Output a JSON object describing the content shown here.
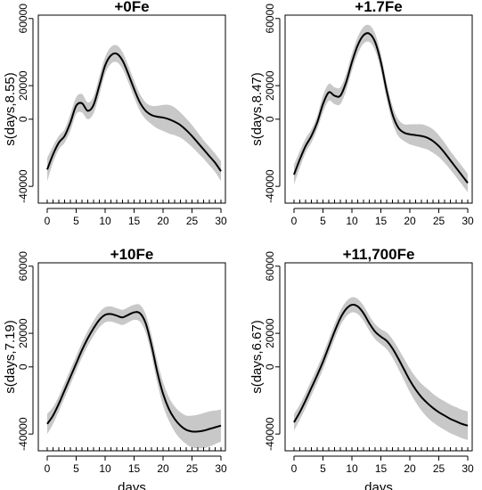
{
  "chart_data": [
    {
      "type": "line",
      "title": "+0Fe",
      "ylabel": "s(days,8.55)",
      "xlabel": "",
      "xlim": [
        0,
        30
      ],
      "ylim": [
        -50000,
        62000
      ],
      "xticks": [
        0,
        5,
        10,
        15,
        20,
        25,
        30
      ],
      "yticks": [
        -40000,
        0,
        20000,
        60000
      ],
      "ytick_labels": [
        "-40000",
        "0",
        "20000",
        "60000"
      ],
      "rug": [
        0,
        1,
        2,
        3,
        4,
        5,
        6,
        7,
        8,
        9,
        10,
        11,
        12,
        13,
        14,
        15,
        16,
        17,
        18,
        19,
        20,
        21,
        22,
        23,
        24,
        25,
        26,
        27,
        28,
        29,
        30
      ],
      "series": [
        {
          "x": [
            0,
            1,
            2,
            3,
            4,
            5,
            6,
            7,
            8,
            9,
            10,
            11,
            12,
            13,
            14,
            15,
            16,
            17,
            18,
            19,
            20,
            21,
            22,
            23,
            24,
            25,
            26,
            27,
            28,
            29,
            30
          ],
          "y": [
            -30000,
            -21000,
            -14000,
            -10000,
            -2000,
            8000,
            9500,
            5000,
            8500,
            20000,
            32000,
            38000,
            39000,
            35000,
            27000,
            18000,
            10000,
            5000,
            2500,
            1500,
            1000,
            0,
            -1500,
            -3500,
            -6500,
            -10000,
            -14000,
            -18000,
            -22000,
            -26000,
            -31000
          ],
          "lower": [
            -37000,
            -26000,
            -18000,
            -14000,
            -7000,
            3000,
            4000,
            0,
            3500,
            14500,
            27000,
            33000,
            34000,
            30000,
            22000,
            13000,
            5000,
            0,
            -3000,
            -5500,
            -7000,
            -8500,
            -9500,
            -11000,
            -13500,
            -16500,
            -20000,
            -23500,
            -27500,
            -31500,
            -37000
          ],
          "upper": [
            -23000,
            -16000,
            -10000,
            -6000,
            3000,
            13000,
            15000,
            10000,
            13500,
            25500,
            37000,
            43000,
            44000,
            40000,
            32000,
            23000,
            15000,
            10000,
            8000,
            8000,
            8500,
            8500,
            7000,
            4000,
            500,
            -3500,
            -8000,
            -12500,
            -16500,
            -20500,
            -25000
          ]
        }
      ]
    },
    {
      "type": "line",
      "title": "+1.7Fe",
      "ylabel": "s(days,8.47)",
      "xlabel": "",
      "xlim": [
        0,
        30
      ],
      "ylim": [
        -50000,
        62000
      ],
      "xticks": [
        0,
        5,
        10,
        15,
        20,
        25,
        30
      ],
      "yticks": [
        -40000,
        0,
        20000,
        60000
      ],
      "ytick_labels": [
        "-40000",
        "0",
        "20000",
        "60000"
      ],
      "rug": [
        0,
        1,
        2,
        3,
        4,
        5,
        6,
        7,
        8,
        9,
        10,
        11,
        12,
        13,
        14,
        15,
        16,
        17,
        18,
        19,
        20,
        21,
        22,
        23,
        24,
        25,
        26,
        27,
        28,
        29,
        30
      ],
      "series": [
        {
          "x": [
            0,
            1,
            2,
            3,
            4,
            5,
            6,
            7,
            8,
            9,
            10,
            11,
            12,
            13,
            14,
            15,
            16,
            17,
            18,
            19,
            20,
            21,
            22,
            23,
            24,
            25,
            26,
            27,
            28,
            29,
            30
          ],
          "y": [
            -33000,
            -24000,
            -16000,
            -10000,
            -2000,
            9000,
            16000,
            14000,
            14000,
            22000,
            34000,
            44000,
            50000,
            51000,
            46000,
            34000,
            17000,
            3000,
            -5000,
            -8000,
            -9000,
            -9500,
            -10000,
            -11000,
            -13000,
            -16000,
            -20000,
            -24500,
            -29000,
            -33500,
            -38000
          ],
          "lower": [
            -39000,
            -29000,
            -20000,
            -14000,
            -6000,
            4000,
            11000,
            9000,
            9000,
            17000,
            29000,
            39000,
            45000,
            46000,
            41000,
            29000,
            12000,
            -2000,
            -10000,
            -13000,
            -15000,
            -16000,
            -17000,
            -18000,
            -20000,
            -22500,
            -26000,
            -30000,
            -34500,
            -39000,
            -43500
          ],
          "upper": [
            -27000,
            -19000,
            -11500,
            -6000,
            2000,
            14000,
            21000,
            19000,
            19000,
            27000,
            39000,
            49000,
            55000,
            56000,
            51000,
            39000,
            22000,
            8000,
            0,
            -3000,
            -3000,
            -3000,
            -3000,
            -4000,
            -6000,
            -9500,
            -14000,
            -19000,
            -23500,
            -28000,
            -32500
          ]
        }
      ]
    },
    {
      "type": "line",
      "title": "+10Fe",
      "ylabel": "s(days,7.19)",
      "xlabel": "days",
      "xlim": [
        0,
        30
      ],
      "ylim": [
        -50000,
        62000
      ],
      "xticks": [
        0,
        5,
        10,
        15,
        20,
        25,
        30
      ],
      "yticks": [
        -40000,
        0,
        20000,
        60000
      ],
      "ytick_labels": [
        "-40000",
        "0",
        "20000",
        "60000"
      ],
      "rug": [
        0,
        1,
        2,
        3,
        4,
        5,
        6,
        7,
        8,
        9,
        10,
        11,
        12,
        13,
        14,
        15,
        16,
        17,
        18,
        19,
        20,
        21,
        22,
        23,
        24,
        25,
        26,
        27,
        28,
        29,
        30
      ],
      "series": [
        {
          "x": [
            0,
            1,
            2,
            3,
            4,
            5,
            6,
            7,
            8,
            9,
            10,
            11,
            12,
            13,
            14,
            15,
            16,
            17,
            18,
            19,
            20,
            21,
            22,
            23,
            24,
            25,
            26,
            27,
            28,
            29,
            30
          ],
          "y": [
            -34000,
            -29000,
            -22000,
            -14000,
            -6000,
            2000,
            10000,
            17000,
            23000,
            28000,
            31000,
            31500,
            30500,
            29500,
            31000,
            32500,
            32000,
            26000,
            13000,
            -3000,
            -16000,
            -25000,
            -31000,
            -35000,
            -37500,
            -38500,
            -38500,
            -38000,
            -37000,
            -36000,
            -35000
          ],
          "lower": [
            -40000,
            -34000,
            -26500,
            -18500,
            -10500,
            -2500,
            5500,
            12500,
            18500,
            23500,
            26500,
            27000,
            26000,
            25000,
            26500,
            28000,
            27000,
            20500,
            7000,
            -9500,
            -23000,
            -32000,
            -38500,
            -43000,
            -46000,
            -48000,
            -48500,
            -48500,
            -47500,
            -46000,
            -44500
          ],
          "upper": [
            -28000,
            -24000,
            -17500,
            -9500,
            -1500,
            6500,
            14500,
            21500,
            27500,
            32500,
            35500,
            36000,
            35000,
            34000,
            35500,
            37000,
            37000,
            31500,
            19000,
            3500,
            -9000,
            -18000,
            -23500,
            -27000,
            -29000,
            -29000,
            -28500,
            -27500,
            -26500,
            -26000,
            -25500
          ]
        }
      ]
    },
    {
      "type": "line",
      "title": "+11,700Fe",
      "ylabel": "s(days,6.67)",
      "xlabel": "days",
      "xlim": [
        0,
        30
      ],
      "ylim": [
        -50000,
        62000
      ],
      "xticks": [
        0,
        5,
        10,
        15,
        20,
        25,
        30
      ],
      "yticks": [
        -40000,
        0,
        20000,
        60000
      ],
      "ytick_labels": [
        "-40000",
        "0",
        "20000",
        "60000"
      ],
      "rug": [
        0,
        1,
        2,
        3,
        4,
        5,
        6,
        7,
        8,
        9,
        10,
        11,
        12,
        13,
        14,
        15,
        16,
        17,
        18,
        19,
        20,
        21,
        22,
        23,
        24,
        25,
        26,
        27,
        28,
        29,
        30
      ],
      "series": [
        {
          "x": [
            0,
            1,
            2,
            3,
            4,
            5,
            6,
            7,
            8,
            9,
            10,
            11,
            12,
            13,
            14,
            15,
            16,
            17,
            18,
            19,
            20,
            21,
            22,
            23,
            24,
            25,
            26,
            27,
            28,
            29,
            30
          ],
          "y": [
            -33000,
            -27000,
            -20000,
            -12500,
            -5000,
            3000,
            12000,
            21000,
            29000,
            34500,
            37000,
            36000,
            32000,
            26000,
            21000,
            18000,
            15500,
            11000,
            5000,
            -1500,
            -8000,
            -13500,
            -18000,
            -21500,
            -24500,
            -27000,
            -29000,
            -31000,
            -32500,
            -34000,
            -35000
          ],
          "lower": [
            -38000,
            -31500,
            -24500,
            -17000,
            -9500,
            -1500,
            7500,
            16500,
            24500,
            30000,
            32500,
            31500,
            27500,
            21500,
            16500,
            13500,
            10500,
            5500,
            -1000,
            -8000,
            -15000,
            -21000,
            -26000,
            -30000,
            -33000,
            -35500,
            -37500,
            -39500,
            -41000,
            -42500,
            -43500
          ],
          "upper": [
            -28000,
            -22500,
            -15500,
            -8000,
            -500,
            7500,
            16500,
            25500,
            33500,
            39000,
            41500,
            40500,
            36500,
            30500,
            25500,
            22500,
            20500,
            16500,
            11000,
            5000,
            -1000,
            -6000,
            -10000,
            -13000,
            -16000,
            -18500,
            -20500,
            -22500,
            -24000,
            -25500,
            -26500
          ]
        }
      ]
    }
  ]
}
